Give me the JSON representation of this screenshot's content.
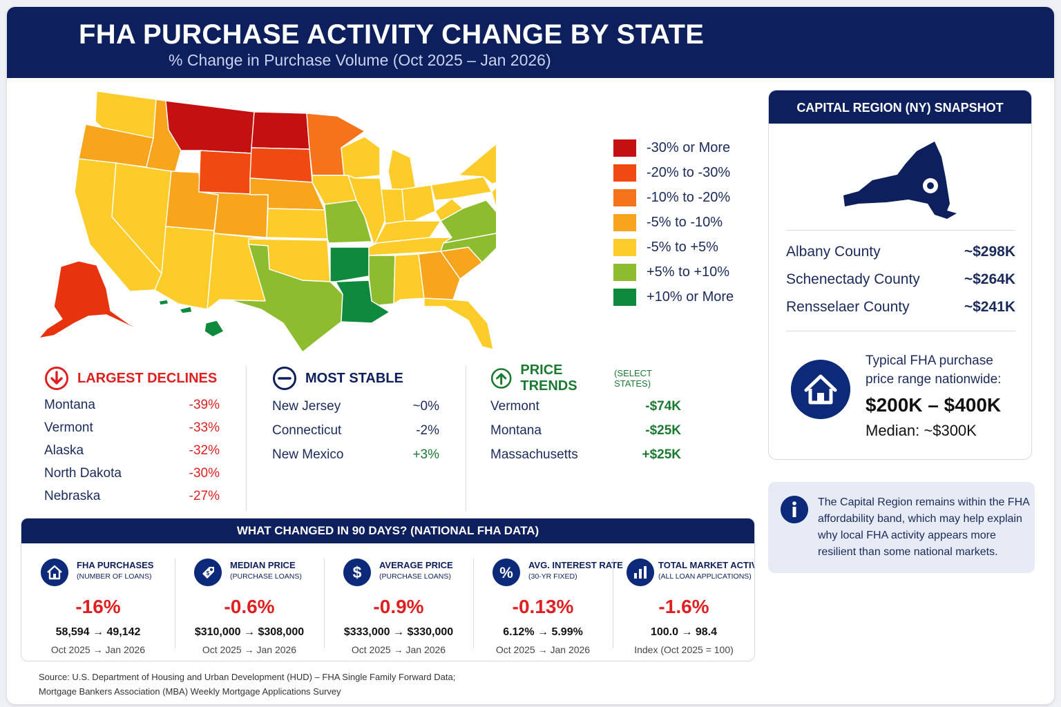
{
  "header": {
    "title": "FHA PURCHASE ACTIVITY CHANGE BY STATE",
    "subtitle": "% Change in Purchase Volume (Oct 2025 – Jan 2026)"
  },
  "legend": [
    {
      "label": "-30% or More",
      "color": "#c41010"
    },
    {
      "label": "-20% to -30%",
      "color": "#f04a12"
    },
    {
      "label": "-10% to -20%",
      "color": "#f5731a"
    },
    {
      "label": "-5% to -10%",
      "color": "#f6a51c"
    },
    {
      "label": "-5% to +5%",
      "color": "#fbcc2a"
    },
    {
      "label": "+5% to +10%",
      "color": "#8dbd2e"
    },
    {
      "label": "+10% or More",
      "color": "#0f8a3c"
    }
  ],
  "declines": {
    "title": "LARGEST DECLINES",
    "color": "#e02020",
    "rows": [
      {
        "name": "Montana",
        "value": "-39%"
      },
      {
        "name": "Vermont",
        "value": "-33%"
      },
      {
        "name": "Alaska",
        "value": "-32%"
      },
      {
        "name": "North Dakota",
        "value": "-30%"
      },
      {
        "name": "Nebraska",
        "value": "-27%"
      }
    ]
  },
  "stable": {
    "title": "MOST STABLE",
    "color": "#0d1f5c",
    "rows": [
      {
        "name": "New Jersey",
        "value": "~0%"
      },
      {
        "name": "Connecticut",
        "value": "-2%"
      },
      {
        "name": "New Mexico",
        "value": "+3%"
      }
    ]
  },
  "prices": {
    "title": "PRICE TRENDS",
    "subtitle": "(SELECT STATES)",
    "color": "#1a7a32",
    "rows": [
      {
        "name": "Vermont",
        "value": "-$74K"
      },
      {
        "name": "Montana",
        "value": "-$25K"
      },
      {
        "name": "Massachusetts",
        "value": "+$25K"
      }
    ]
  },
  "changed": {
    "title": "WHAT CHANGED IN 90 DAYS? (NATIONAL FHA DATA)",
    "metrics": [
      {
        "icon": "house-icon",
        "label": "FHA PURCHASES",
        "sub": "(NUMBER OF LOANS)",
        "value": "-16%",
        "from_to": "58,594 → 49,142",
        "period": "Oct 2025 → Jan 2026"
      },
      {
        "icon": "price-tag-icon",
        "label": "MEDIAN PRICE",
        "sub": "(PURCHASE LOANS)",
        "value": "-0.6%",
        "from_to": "$310,000 → $308,000",
        "period": "Oct 2025 → Jan 2026"
      },
      {
        "icon": "dollar-icon",
        "label": "AVERAGE PRICE",
        "sub": "(PURCHASE LOANS)",
        "value": "-0.9%",
        "from_to": "$333,000 → $330,000",
        "period": "Oct 2025 → Jan 2026"
      },
      {
        "icon": "percent-icon",
        "label": "AVG. INTEREST RATE",
        "sub": "(30-YR FIXED)",
        "value": "-0.13%",
        "from_to": "6.12% → 5.99%",
        "period": "Oct 2025 → Jan 2026"
      },
      {
        "icon": "bar-chart-icon",
        "label": "TOTAL MARKET ACTIVITY",
        "sub": "(ALL LOAN APPLICATIONS)",
        "value": "-1.6%",
        "from_to": "100.0 → 98.4",
        "period": "Index (Oct 2025 = 100)"
      }
    ]
  },
  "source": {
    "line1": "Source: U.S. Department of Housing and Urban Development (HUD) – FHA Single Family Forward Data;",
    "line2": "Mortgage Bankers Association (MBA) Weekly Mortgage Applications Survey"
  },
  "snapshot": {
    "title": "CAPITAL REGION (NY) SNAPSHOT",
    "counties": [
      {
        "name": "Albany County",
        "value": "~$298K"
      },
      {
        "name": "Schenectady County",
        "value": "~$264K"
      },
      {
        "name": "Rensselaer County",
        "value": "~$241K"
      }
    ],
    "typical_line1": "Typical FHA purchase",
    "typical_line2": "price range nationwide:",
    "range": "$200K – $400K",
    "median": "Median: ~$300K"
  },
  "info": {
    "text": "The Capital Region remains within the FHA affordability band, which may help explain why local FHA activity appears more resilient than some national markets."
  }
}
